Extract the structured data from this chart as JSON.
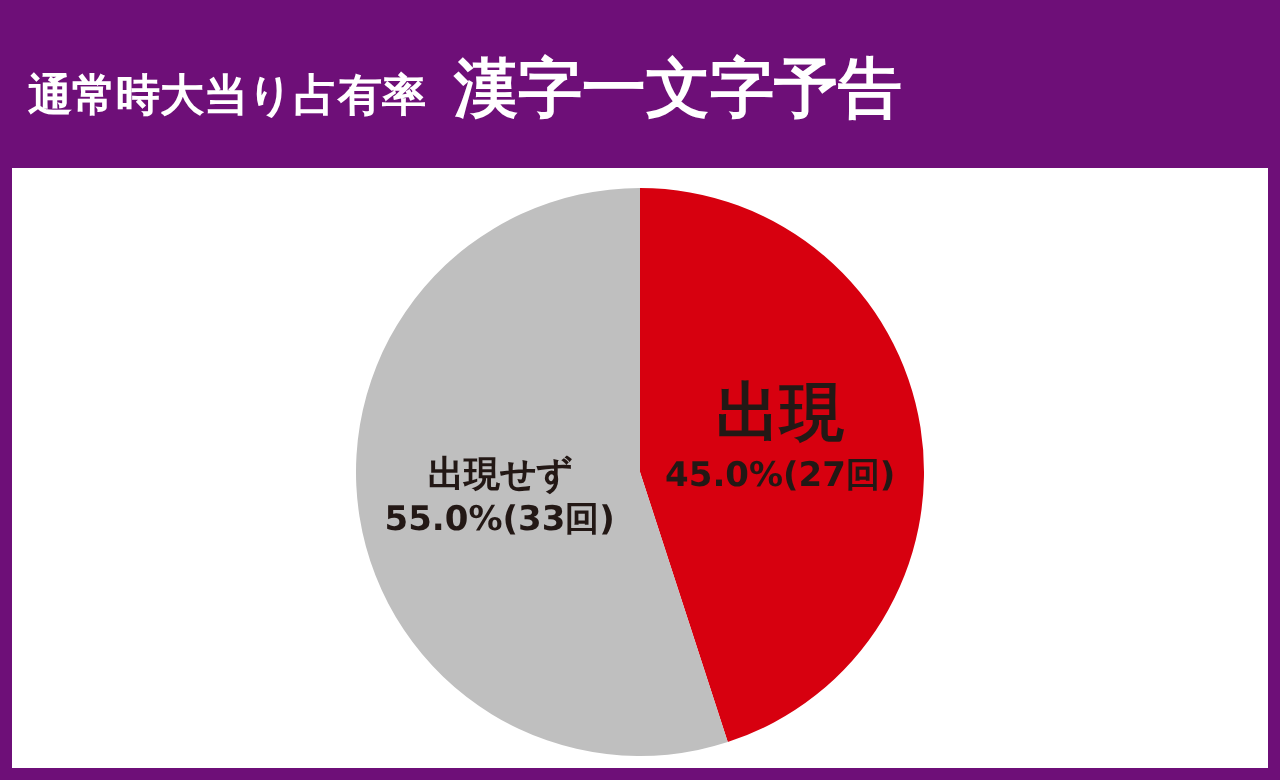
{
  "chart_data": {
    "type": "pie",
    "title": "通常時大当り占有率",
    "subtitle": "漢字一文字予告",
    "categories": [
      "出現",
      "出現せず"
    ],
    "values": [
      45.0,
      55.0
    ],
    "value_labels": [
      "45.0%(27回)",
      "55.0%(33回)"
    ],
    "colors": [
      "#d7000f",
      "#bfbfbf"
    ]
  }
}
